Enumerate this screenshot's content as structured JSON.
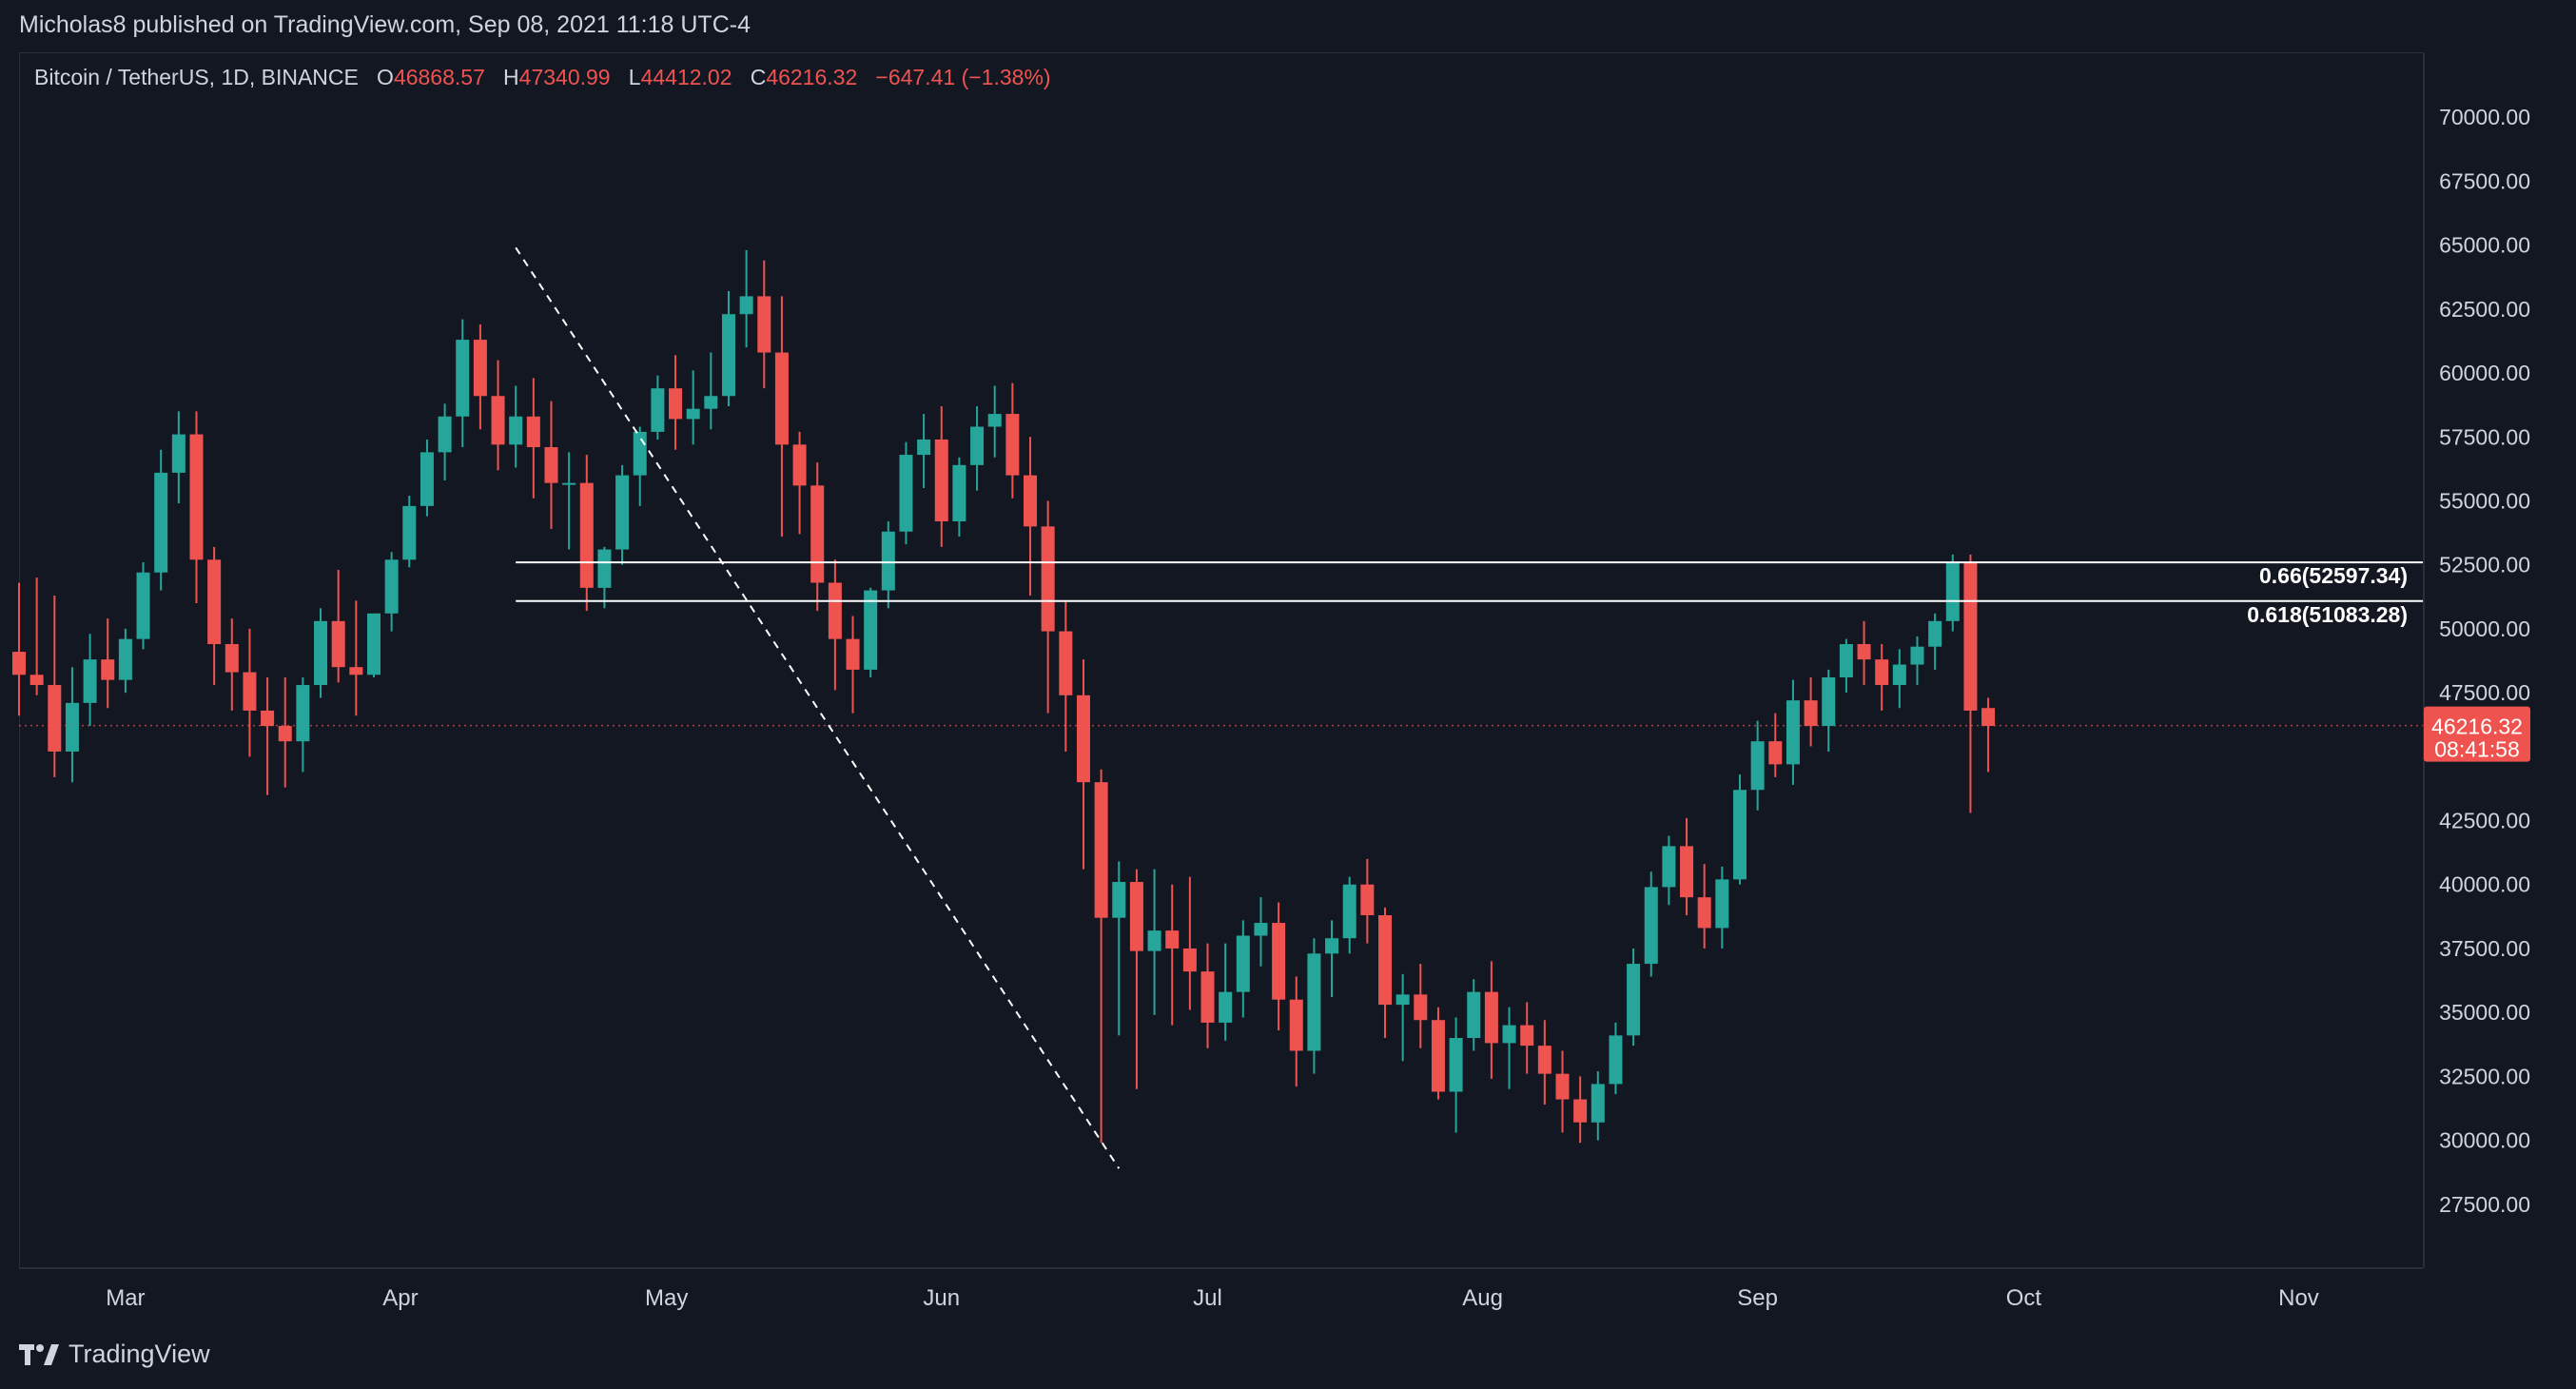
{
  "header": {
    "published": "Micholas8 published on TradingView.com, Sep 08, 2021 11:18 UTC-4"
  },
  "legend": {
    "symbol": "Bitcoin / TetherUS, 1D, BINANCE",
    "o_label": "O",
    "o_value": "46868.57",
    "h_label": "H",
    "h_value": "47340.99",
    "l_label": "L",
    "l_value": "44412.02",
    "c_label": "C",
    "c_value": "46216.32",
    "change": "−647.41 (−1.38%)"
  },
  "price_tag": {
    "price": "46216.32",
    "countdown": "08:41:58"
  },
  "footer": {
    "brand": "TradingView"
  },
  "colors": {
    "background": "#131722",
    "up": "#26a69a",
    "down": "#ef5350",
    "text": "#d1d4dc",
    "axis_border": "#2a2e39",
    "line": "#ffffff"
  },
  "chart_data": {
    "type": "candlestick",
    "title": "Bitcoin / TetherUS, 1D, BINANCE",
    "ylim": [
      25000,
      72500
    ],
    "y_ticks": [
      "70000.00",
      "67500.00",
      "65000.00",
      "62500.00",
      "60000.00",
      "57500.00",
      "55000.00",
      "52500.00",
      "50000.00",
      "47500.00",
      "42500.00",
      "40000.00",
      "37500.00",
      "35000.00",
      "32500.00",
      "30000.00",
      "27500.00"
    ],
    "y_tick_values": [
      70000,
      67500,
      65000,
      62500,
      60000,
      57500,
      55000,
      52500,
      50000,
      47500,
      42500,
      40000,
      37500,
      35000,
      32500,
      30000,
      27500
    ],
    "x_ticks": [
      {
        "label": "Mar",
        "date": "2021-03-01"
      },
      {
        "label": "Apr",
        "date": "2021-04-01"
      },
      {
        "label": "May",
        "date": "2021-05-01"
      },
      {
        "label": "Jun",
        "date": "2021-06-01"
      },
      {
        "label": "Jul",
        "date": "2021-07-01"
      },
      {
        "label": "Aug",
        "date": "2021-08-01"
      },
      {
        "label": "Sep",
        "date": "2021-09-01"
      },
      {
        "label": "Oct",
        "date": "2021-10-01"
      },
      {
        "label": "Nov",
        "date": "2021-11-01"
      }
    ],
    "x_range": [
      "2021-02-17",
      "2021-11-15"
    ],
    "grid": false,
    "candles": [
      [
        "2021-02-17",
        49100,
        51800,
        48200,
        46600,
        48200
      ],
      [
        "2021-02-19",
        48200,
        52000,
        47800,
        47400,
        47800
      ],
      [
        "2021-02-21",
        47800,
        51300,
        45200,
        44200,
        45200
      ],
      [
        "2021-02-23",
        45200,
        48500,
        47100,
        44000,
        47100
      ],
      [
        "2021-02-25",
        47100,
        49800,
        48800,
        46200,
        48800
      ],
      [
        "2021-02-27",
        48800,
        50400,
        48000,
        46900,
        48000
      ],
      [
        "2021-03-01",
        48000,
        50000,
        49600,
        47500,
        49600
      ],
      [
        "2021-03-03",
        49600,
        52600,
        52200,
        49200,
        52200
      ],
      [
        "2021-03-05",
        52200,
        57000,
        56100,
        51500,
        56100
      ],
      [
        "2021-03-07",
        56100,
        58500,
        57600,
        54900,
        57600
      ],
      [
        "2021-03-09",
        57600,
        58500,
        52700,
        51000,
        52700
      ],
      [
        "2021-03-11",
        52700,
        53200,
        49400,
        47800,
        49400
      ],
      [
        "2021-03-13",
        49400,
        50400,
        48300,
        46800,
        48300
      ],
      [
        "2021-03-15",
        48300,
        50000,
        46800,
        45000,
        46800
      ],
      [
        "2021-03-17",
        46800,
        48100,
        46200,
        43500,
        46200
      ],
      [
        "2021-03-19",
        46200,
        48100,
        45600,
        43800,
        45600
      ],
      [
        "2021-03-21",
        45600,
        48100,
        47800,
        44400,
        47800
      ],
      [
        "2021-03-23",
        47800,
        50800,
        50300,
        47300,
        50300
      ],
      [
        "2021-03-25",
        50300,
        52300,
        48500,
        47900,
        48500
      ],
      [
        "2021-03-27",
        48500,
        51100,
        48200,
        46600,
        48200
      ],
      [
        "2021-03-29",
        48200,
        50500,
        50600,
        48100,
        50600
      ],
      [
        "2021-03-31",
        50600,
        53000,
        52700,
        49900,
        52700
      ],
      [
        "2021-04-02",
        52700,
        55200,
        54800,
        52400,
        54800
      ],
      [
        "2021-04-04",
        54800,
        57400,
        56900,
        54400,
        56900
      ],
      [
        "2021-04-06",
        56900,
        58800,
        58300,
        55800,
        58300
      ],
      [
        "2021-04-08",
        58300,
        62100,
        61300,
        57100,
        61300
      ],
      [
        "2021-04-10",
        61300,
        61900,
        59100,
        57800,
        59100
      ],
      [
        "2021-04-12",
        59100,
        60500,
        57200,
        56200,
        57200
      ],
      [
        "2021-04-14",
        57200,
        59500,
        58300,
        56300,
        58300
      ],
      [
        "2021-04-16",
        58300,
        59800,
        57100,
        55100,
        57100
      ],
      [
        "2021-04-18",
        57100,
        58900,
        55700,
        53900,
        55700
      ],
      [
        "2021-04-20",
        55700,
        56900,
        55700,
        53100,
        55700
      ],
      [
        "2021-04-22",
        55700,
        56800,
        51600,
        50700,
        51600
      ],
      [
        "2021-04-24",
        51600,
        53200,
        53100,
        50800,
        53100
      ],
      [
        "2021-04-26",
        53100,
        56400,
        56000,
        52500,
        56000
      ],
      [
        "2021-04-28",
        56000,
        57900,
        57700,
        54800,
        57700
      ],
      [
        "2021-04-30",
        57700,
        59900,
        59400,
        57400,
        59400
      ],
      [
        "2021-05-02",
        59400,
        60700,
        58200,
        57000,
        58200
      ],
      [
        "2021-05-04",
        58200,
        60100,
        58600,
        57200,
        58600
      ],
      [
        "2021-05-06",
        58600,
        60800,
        59100,
        57800,
        59100
      ],
      [
        "2021-05-08",
        59100,
        63200,
        62300,
        58700,
        62300
      ],
      [
        "2021-05-10",
        62300,
        64800,
        63000,
        61000,
        63000
      ],
      [
        "2021-05-12",
        63000,
        64400,
        60800,
        59400,
        60800
      ],
      [
        "2021-05-14",
        60800,
        63000,
        57200,
        53600,
        57200
      ],
      [
        "2021-05-16",
        57200,
        57700,
        55600,
        53700,
        55600
      ],
      [
        "2021-05-18",
        55600,
        56500,
        51800,
        50700,
        51800
      ],
      [
        "2021-05-20",
        51800,
        52700,
        49600,
        47600,
        49600
      ],
      [
        "2021-05-22",
        49600,
        50500,
        48400,
        46700,
        48400
      ],
      [
        "2021-05-24",
        48400,
        51600,
        51500,
        48100,
        51500
      ],
      [
        "2021-05-26",
        51500,
        54200,
        53800,
        50800,
        53800
      ],
      [
        "2021-05-28",
        53800,
        57300,
        56800,
        53300,
        56800
      ],
      [
        "2021-05-30",
        56800,
        58400,
        57400,
        55500,
        57400
      ],
      [
        "2021-06-01",
        57400,
        58700,
        54200,
        53200,
        54200
      ],
      [
        "2021-06-03",
        54200,
        56700,
        56400,
        53600,
        56400
      ],
      [
        "2021-06-05",
        56400,
        58700,
        57900,
        55400,
        57900
      ],
      [
        "2021-06-07",
        57900,
        59500,
        58400,
        56700,
        58400
      ],
      [
        "2021-06-09",
        58400,
        59600,
        56000,
        55100,
        56000
      ],
      [
        "2021-06-11",
        56000,
        57500,
        54000,
        51300,
        54000
      ],
      [
        "2021-06-13",
        54000,
        55000,
        49900,
        46700,
        49900
      ],
      [
        "2021-06-15",
        49900,
        51100,
        47400,
        45200,
        47400
      ],
      [
        "2021-06-17",
        47400,
        48800,
        44000,
        40600,
        44000
      ],
      [
        "2021-06-19",
        44000,
        44500,
        38700,
        29900,
        38700
      ],
      [
        "2021-06-21",
        38700,
        40900,
        40100,
        34100,
        40100
      ],
      [
        "2021-06-23",
        40100,
        40600,
        37400,
        32000,
        37400
      ],
      [
        "2021-06-25",
        37400,
        40600,
        38200,
        34900,
        38200
      ],
      [
        "2021-06-27",
        38200,
        40000,
        37500,
        34500,
        37500
      ],
      [
        "2021-06-29",
        37500,
        40300,
        36600,
        35100,
        36600
      ],
      [
        "2021-07-01",
        36600,
        37700,
        34600,
        33600,
        34600
      ],
      [
        "2021-07-03",
        34600,
        37700,
        35800,
        33900,
        35800
      ],
      [
        "2021-07-05",
        35800,
        38600,
        38000,
        34800,
        38000
      ],
      [
        "2021-07-07",
        38000,
        39500,
        38500,
        36800,
        38500
      ],
      [
        "2021-07-09",
        38500,
        39300,
        35500,
        34300,
        35500
      ],
      [
        "2021-07-11",
        35500,
        36400,
        33500,
        32100,
        33500
      ],
      [
        "2021-07-13",
        33500,
        37900,
        37300,
        32600,
        37300
      ],
      [
        "2021-07-15",
        37300,
        38600,
        37900,
        35600,
        37900
      ],
      [
        "2021-07-17",
        37900,
        40300,
        40000,
        37300,
        40000
      ],
      [
        "2021-07-19",
        40000,
        41000,
        38800,
        37700,
        38800
      ],
      [
        "2021-07-21",
        38800,
        39100,
        35300,
        34000,
        35300
      ],
      [
        "2021-07-23",
        35300,
        36500,
        35700,
        33100,
        35700
      ],
      [
        "2021-07-25",
        35700,
        36900,
        34700,
        33600,
        34700
      ],
      [
        "2021-07-27",
        34700,
        35200,
        31900,
        31600,
        31900
      ],
      [
        "2021-07-29",
        31900,
        34800,
        34000,
        30300,
        34000
      ],
      [
        "2021-07-31",
        34000,
        36300,
        35800,
        33500,
        35800
      ],
      [
        "2021-08-02",
        35800,
        37000,
        33800,
        32400,
        33800
      ],
      [
        "2021-08-04",
        33800,
        35200,
        34500,
        32000,
        34500
      ],
      [
        "2021-08-06",
        34500,
        35400,
        33700,
        32600,
        33700
      ],
      [
        "2021-08-08",
        33700,
        34700,
        32600,
        31400,
        32600
      ],
      [
        "2021-08-10",
        32600,
        33500,
        31600,
        30300,
        31600
      ],
      [
        "2021-08-12",
        31600,
        32500,
        30700,
        29900,
        30700
      ],
      [
        "2021-08-14",
        30700,
        32700,
        32200,
        30000,
        32200
      ],
      [
        "2021-08-16",
        32200,
        34600,
        34100,
        31800,
        34100
      ],
      [
        "2021-08-18",
        34100,
        37500,
        36900,
        33700,
        36900
      ],
      [
        "2021-08-20",
        36900,
        40500,
        39900,
        36400,
        39900
      ],
      [
        "2021-08-22",
        39900,
        41900,
        41500,
        39200,
        41500
      ],
      [
        "2021-08-24",
        41500,
        42600,
        39500,
        38800,
        39500
      ],
      [
        "2021-08-26",
        39500,
        40800,
        38300,
        37500,
        38300
      ],
      [
        "2021-08-28",
        38300,
        40700,
        40200,
        37500,
        40200
      ],
      [
        "2021-08-30",
        40200,
        44300,
        43700,
        40000,
        43700
      ],
      [
        "2021-09-01",
        43700,
        46400,
        45600,
        42900,
        45600
      ],
      [
        "2021-09-03",
        45600,
        46700,
        44700,
        44200,
        44700
      ],
      [
        "2021-09-05",
        44700,
        48000,
        47200,
        43900,
        47200
      ],
      [
        "2021-09-07",
        47200,
        48100,
        46200,
        45400,
        46200
      ],
      [
        "2021-09-09",
        46200,
        48400,
        48100,
        45200,
        48100
      ],
      [
        "2021-09-11",
        48100,
        49600,
        49400,
        47500,
        49400
      ],
      [
        "2021-09-13",
        49400,
        50300,
        48800,
        47800,
        48800
      ],
      [
        "2021-09-15",
        48800,
        49400,
        47800,
        46800,
        47800
      ],
      [
        "2021-09-17",
        47800,
        49200,
        48600,
        46900,
        48600
      ],
      [
        "2021-09-19",
        48600,
        49700,
        49300,
        47800,
        49300
      ],
      [
        "2021-09-21",
        49300,
        50600,
        50300,
        48400,
        50300
      ],
      [
        "2021-09-23",
        50300,
        52900,
        52600,
        49900,
        52600
      ],
      [
        "2021-09-25",
        52600,
        52900,
        46800,
        42800,
        46800
      ],
      [
        "2021-09-27",
        46900,
        47300,
        46200,
        44400,
        46200
      ]
    ],
    "annotations": [
      {
        "type": "hline",
        "label": "0.66(52597.34)",
        "value": 52597.34,
        "from": "2021-04-14"
      },
      {
        "type": "hline",
        "label": "0.618(51083.28)",
        "value": 51083.28,
        "from": "2021-04-14"
      },
      {
        "type": "trendline",
        "style": "dashed",
        "from": [
          "2021-04-14",
          64900
        ],
        "to": [
          "2021-06-21",
          28900
        ]
      }
    ],
    "last_price": 46216.32
  }
}
